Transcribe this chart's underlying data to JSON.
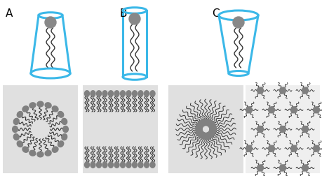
{
  "labels": [
    "A",
    "B",
    "C"
  ],
  "cyan_color": "#3BB8E8",
  "gray_color": "#888888",
  "light_gray_bg": "#E0E0E0",
  "white_bg": "#F8F8F8",
  "background": "#FFFFFF",
  "head_color": "#808080",
  "tail_color": "#333333"
}
